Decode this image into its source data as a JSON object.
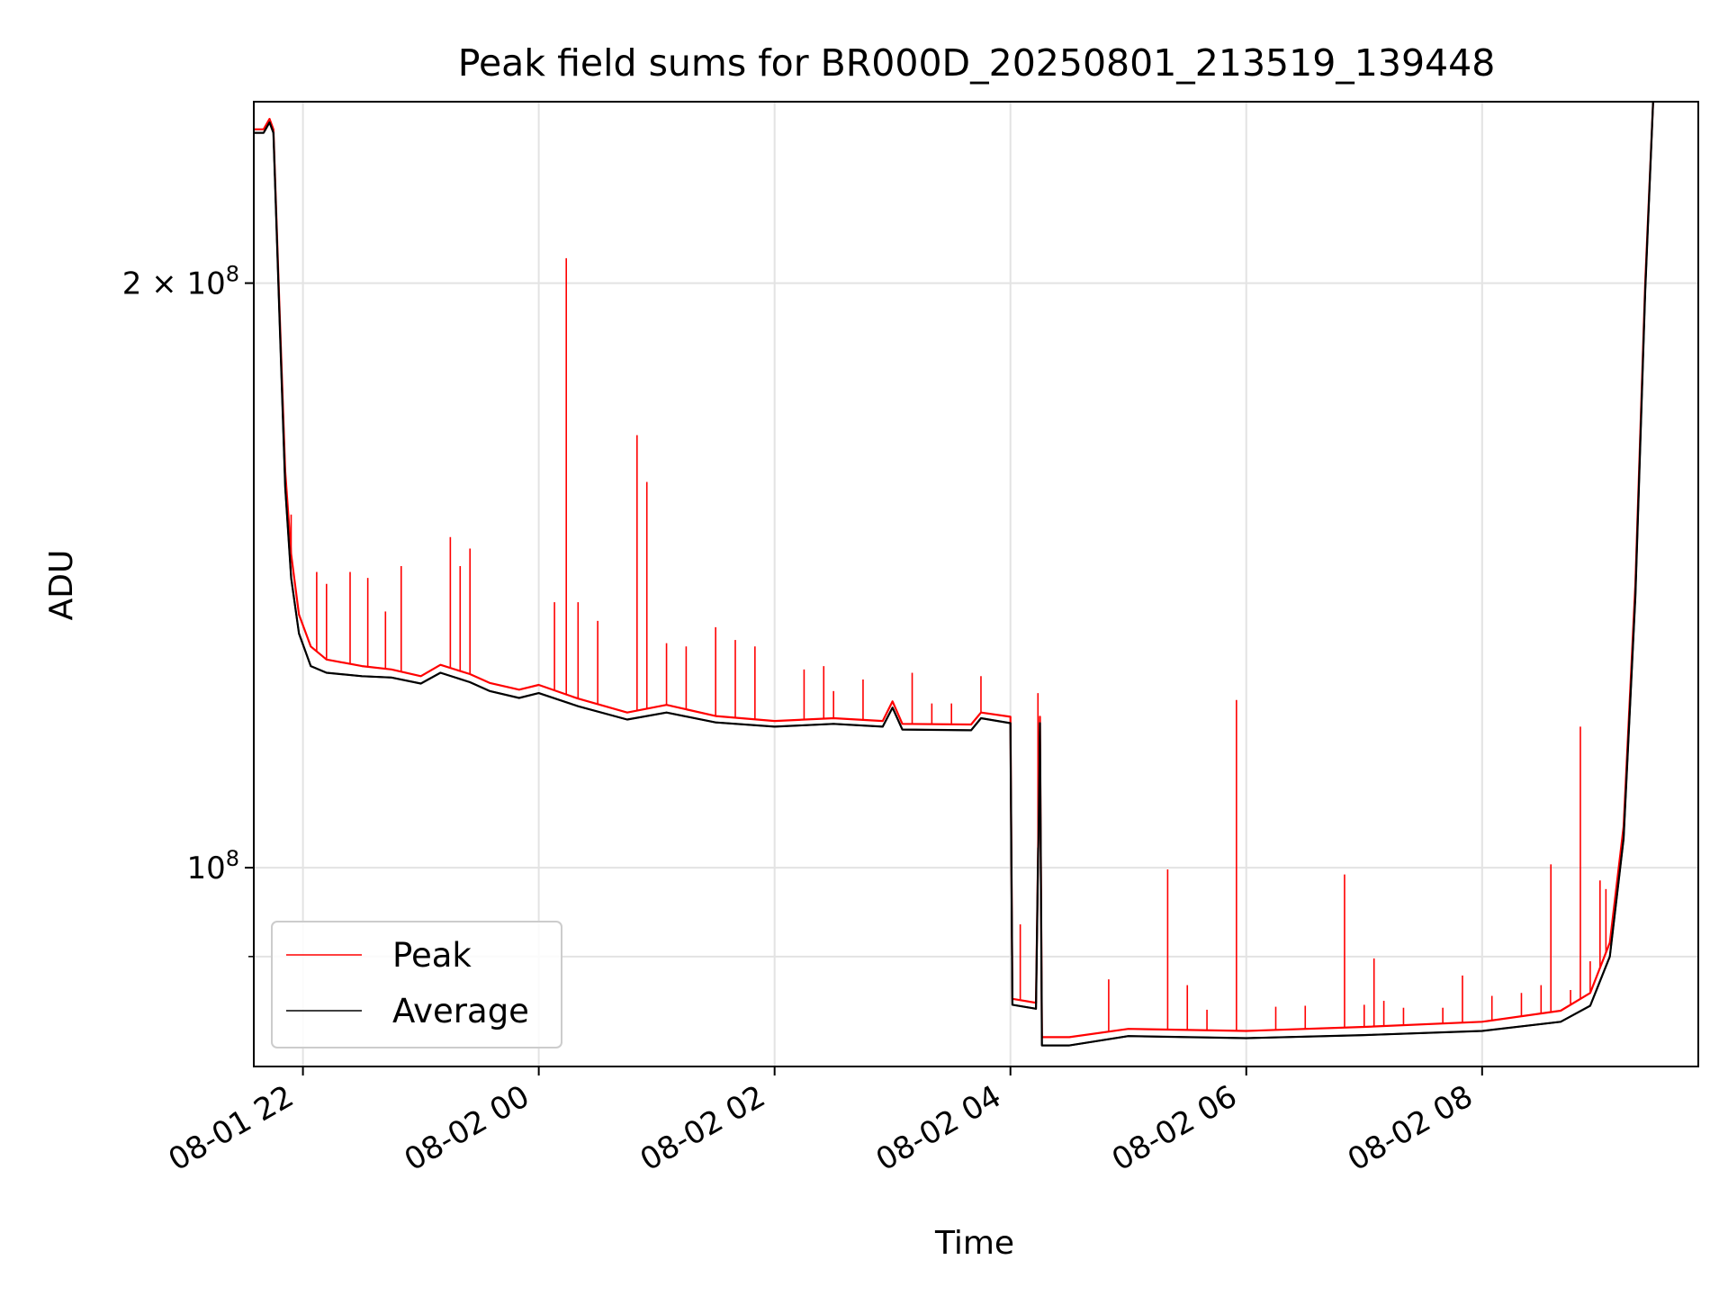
{
  "chart_data": {
    "type": "line",
    "title": "Peak field sums for BR000D_20250801_213519_139448",
    "xlabel": "Time",
    "ylabel": "ADU",
    "yscale": "log",
    "ylim": [
      79000000,
      248000000
    ],
    "xlim": [
      "2025-08-01 21:35",
      "2025-08-02 09:50"
    ],
    "grid": true,
    "legend_position": "lower-left",
    "x_ticks": [
      "08-01 22",
      "08-02 00",
      "08-02 02",
      "08-02 04",
      "08-02 06",
      "08-02 08"
    ],
    "x_tick_times": [
      "2025-08-01 22:00",
      "2025-08-02 00:00",
      "2025-08-02 02:00",
      "2025-08-02 04:00",
      "2025-08-02 06:00",
      "2025-08-02 08:00"
    ],
    "y_major_ticks": [
      {
        "value": 200000000,
        "mantissa": "2",
        "times": "×",
        "base": "10",
        "exp": "8"
      },
      {
        "value": 100000000,
        "mantissa": "",
        "times": "",
        "base": "10",
        "exp": "8"
      }
    ],
    "y_minor_ticks": [
      90000000
    ],
    "series": [
      {
        "name": "Peak",
        "color": "#ff0000",
        "points": [
          [
            "2025-08-01 21:35",
            240000000
          ],
          [
            "2025-08-01 21:40",
            240000000
          ],
          [
            "2025-08-01 21:43",
            243000000
          ],
          [
            "2025-08-01 21:45",
            240000000
          ],
          [
            "2025-08-01 21:48",
            195000000
          ],
          [
            "2025-08-01 21:51",
            160000000
          ],
          [
            "2025-08-01 21:54",
            145000000
          ],
          [
            "2025-08-01 21:58",
            135000000
          ],
          [
            "2025-08-01 22:04",
            130000000
          ],
          [
            "2025-08-01 22:12",
            128000000
          ],
          [
            "2025-08-01 22:30",
            127000000
          ],
          [
            "2025-08-01 22:45",
            126500000
          ],
          [
            "2025-08-01 23:00",
            125500000
          ],
          [
            "2025-08-01 23:10",
            127200000
          ],
          [
            "2025-08-01 23:25",
            125800000
          ],
          [
            "2025-08-01 23:35",
            124500000
          ],
          [
            "2025-08-01 23:50",
            123500000
          ],
          [
            "2025-08-02 00:00",
            124200000
          ],
          [
            "2025-08-02 00:20",
            122200000
          ],
          [
            "2025-08-02 00:45",
            120200000
          ],
          [
            "2025-08-02 01:05",
            121300000
          ],
          [
            "2025-08-02 01:30",
            119700000
          ],
          [
            "2025-08-02 02:00",
            119000000
          ],
          [
            "2025-08-02 02:30",
            119400000
          ],
          [
            "2025-08-02 02:55",
            119000000
          ],
          [
            "2025-08-02 03:00",
            121800000
          ],
          [
            "2025-08-02 03:05",
            118600000
          ],
          [
            "2025-08-02 03:40",
            118500000
          ],
          [
            "2025-08-02 03:45",
            120200000
          ],
          [
            "2025-08-02 04:00",
            119600000
          ],
          [
            "2025-08-02 04:01",
            85600000
          ],
          [
            "2025-08-02 04:13",
            85200000
          ],
          [
            "2025-08-02 04:15",
            119600000
          ],
          [
            "2025-08-02 04:16",
            81800000
          ],
          [
            "2025-08-02 04:30",
            81800000
          ],
          [
            "2025-08-02 05:00",
            82600000
          ],
          [
            "2025-08-02 06:00",
            82400000
          ],
          [
            "2025-08-02 07:00",
            82800000
          ],
          [
            "2025-08-02 08:00",
            83300000
          ],
          [
            "2025-08-02 08:40",
            84400000
          ],
          [
            "2025-08-02 08:55",
            86200000
          ],
          [
            "2025-08-02 09:05",
            91500000
          ],
          [
            "2025-08-02 09:12",
            105000000
          ],
          [
            "2025-08-02 09:18",
            140000000
          ],
          [
            "2025-08-02 09:23",
            200000000
          ],
          [
            "2025-08-02 09:27",
            248000000
          ]
        ]
      },
      {
        "name": "Average",
        "color": "#000000",
        "points": [
          [
            "2025-08-01 21:35",
            239000000
          ],
          [
            "2025-08-01 21:40",
            239000000
          ],
          [
            "2025-08-01 21:43",
            242000000
          ],
          [
            "2025-08-01 21:45",
            239000000
          ],
          [
            "2025-08-01 21:48",
            193000000
          ],
          [
            "2025-08-01 21:51",
            157000000
          ],
          [
            "2025-08-01 21:54",
            141000000
          ],
          [
            "2025-08-01 21:58",
            132000000
          ],
          [
            "2025-08-01 22:04",
            127000000
          ],
          [
            "2025-08-01 22:12",
            126000000
          ],
          [
            "2025-08-01 22:30",
            125500000
          ],
          [
            "2025-08-01 22:45",
            125300000
          ],
          [
            "2025-08-01 23:00",
            124400000
          ],
          [
            "2025-08-01 23:10",
            126000000
          ],
          [
            "2025-08-01 23:25",
            124600000
          ],
          [
            "2025-08-01 23:35",
            123300000
          ],
          [
            "2025-08-01 23:50",
            122300000
          ],
          [
            "2025-08-02 00:00",
            123000000
          ],
          [
            "2025-08-02 00:20",
            121100000
          ],
          [
            "2025-08-02 00:45",
            119200000
          ],
          [
            "2025-08-02 01:05",
            120200000
          ],
          [
            "2025-08-02 01:30",
            118800000
          ],
          [
            "2025-08-02 02:00",
            118200000
          ],
          [
            "2025-08-02 02:30",
            118600000
          ],
          [
            "2025-08-02 02:55",
            118200000
          ],
          [
            "2025-08-02 03:00",
            120900000
          ],
          [
            "2025-08-02 03:05",
            117800000
          ],
          [
            "2025-08-02 03:40",
            117700000
          ],
          [
            "2025-08-02 03:45",
            119400000
          ],
          [
            "2025-08-02 04:00",
            118700000
          ],
          [
            "2025-08-02 04:01",
            85000000
          ],
          [
            "2025-08-02 04:13",
            84600000
          ],
          [
            "2025-08-02 04:15",
            118700000
          ],
          [
            "2025-08-02 04:16",
            81000000
          ],
          [
            "2025-08-02 04:30",
            81000000
          ],
          [
            "2025-08-02 05:00",
            81900000
          ],
          [
            "2025-08-02 06:00",
            81700000
          ],
          [
            "2025-08-02 07:00",
            82000000
          ],
          [
            "2025-08-02 08:00",
            82400000
          ],
          [
            "2025-08-02 08:40",
            83300000
          ],
          [
            "2025-08-02 08:55",
            84900000
          ],
          [
            "2025-08-02 09:05",
            90000000
          ],
          [
            "2025-08-02 09:12",
            103500000
          ],
          [
            "2025-08-02 09:18",
            138000000
          ],
          [
            "2025-08-02 09:23",
            198000000
          ],
          [
            "2025-08-02 09:27",
            248000000
          ]
        ]
      }
    ],
    "peak_spikes": [
      [
        "2025-08-01 21:54",
        152000000
      ],
      [
        "2025-08-01 22:07",
        142000000
      ],
      [
        "2025-08-01 22:12",
        140000000
      ],
      [
        "2025-08-01 22:24",
        142000000
      ],
      [
        "2025-08-01 22:33",
        141000000
      ],
      [
        "2025-08-01 22:42",
        135500000
      ],
      [
        "2025-08-01 22:50",
        143000000
      ],
      [
        "2025-08-01 23:15",
        148000000
      ],
      [
        "2025-08-01 23:20",
        143000000
      ],
      [
        "2025-08-01 23:25",
        146000000
      ],
      [
        "2025-08-02 00:08",
        137000000
      ],
      [
        "2025-08-02 00:14",
        206000000
      ],
      [
        "2025-08-02 00:20",
        137000000
      ],
      [
        "2025-08-02 00:30",
        134000000
      ],
      [
        "2025-08-02 00:50",
        167000000
      ],
      [
        "2025-08-02 00:55",
        158000000
      ],
      [
        "2025-08-02 01:05",
        130500000
      ],
      [
        "2025-08-02 01:15",
        130000000
      ],
      [
        "2025-08-02 01:30",
        133000000
      ],
      [
        "2025-08-02 01:40",
        131000000
      ],
      [
        "2025-08-02 01:50",
        130000000
      ],
      [
        "2025-08-02 02:15",
        126500000
      ],
      [
        "2025-08-02 02:25",
        127000000
      ],
      [
        "2025-08-02 02:30",
        123300000
      ],
      [
        "2025-08-02 02:45",
        125000000
      ],
      [
        "2025-08-02 03:10",
        126000000
      ],
      [
        "2025-08-02 03:20",
        121500000
      ],
      [
        "2025-08-02 03:30",
        121500000
      ],
      [
        "2025-08-02 03:45",
        125500000
      ],
      [
        "2025-08-02 04:05",
        93500000
      ],
      [
        "2025-08-02 04:14",
        123000000
      ],
      [
        "2025-08-02 04:50",
        87600000
      ],
      [
        "2025-08-02 05:20",
        99800000
      ],
      [
        "2025-08-02 05:30",
        87000000
      ],
      [
        "2025-08-02 05:40",
        84500000
      ],
      [
        "2025-08-02 05:55",
        122000000
      ],
      [
        "2025-08-02 06:15",
        84800000
      ],
      [
        "2025-08-02 06:30",
        84900000
      ],
      [
        "2025-08-02 06:50",
        99200000
      ],
      [
        "2025-08-02 07:00",
        85000000
      ],
      [
        "2025-08-02 07:05",
        89800000
      ],
      [
        "2025-08-02 07:10",
        85400000
      ],
      [
        "2025-08-02 07:20",
        84700000
      ],
      [
        "2025-08-02 07:40",
        84700000
      ],
      [
        "2025-08-02 07:50",
        88000000
      ],
      [
        "2025-08-02 08:05",
        85900000
      ],
      [
        "2025-08-02 08:20",
        86200000
      ],
      [
        "2025-08-02 08:30",
        87000000
      ],
      [
        "2025-08-02 08:35",
        100400000
      ],
      [
        "2025-08-02 08:45",
        86500000
      ],
      [
        "2025-08-02 08:50",
        118200000
      ],
      [
        "2025-08-02 08:55",
        89500000
      ],
      [
        "2025-08-02 09:00",
        98500000
      ],
      [
        "2025-08-02 09:03",
        97500000
      ]
    ]
  }
}
